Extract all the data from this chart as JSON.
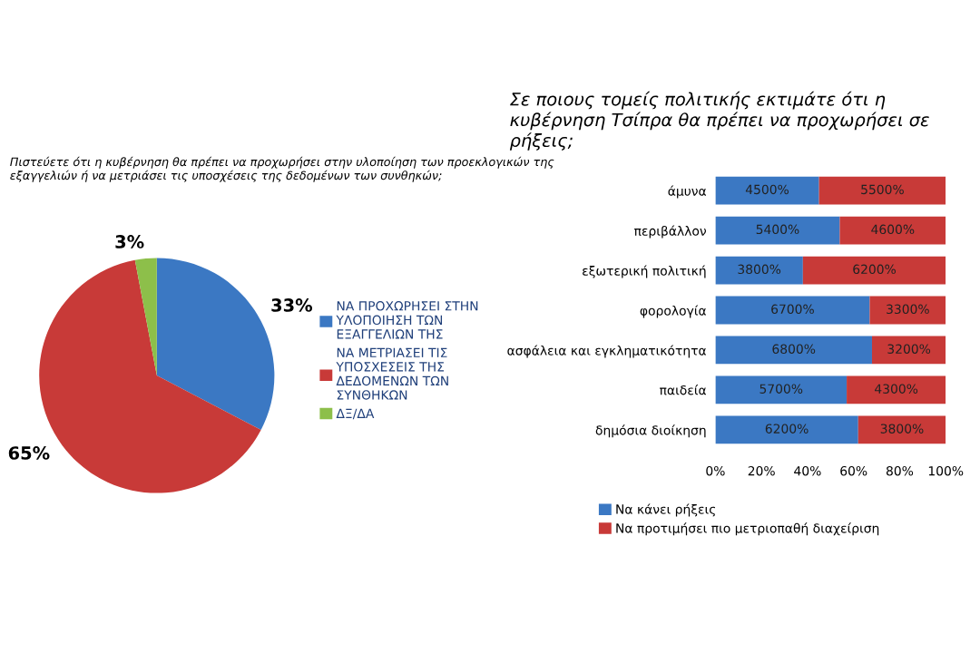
{
  "chart_data": [
    {
      "type": "pie",
      "title": "Πιστεύετε ότι η κυβέρνηση θα πρέπει να προχωρήσει στην υλοποίηση των προεκλογικών της εξαγγελιών ή να μετριάσει τις υποσχέσεις της δεδομένων των συνθηκών;",
      "categories": [
        "ΝΑ ΠΡΟΧΩΡΗΣΕΙ ΣΤΗΝ ΥΛΟΠΟΙΗΣΗ ΤΩΝ ΕΞΑΓΓΕΛΙΩΝ ΤΗΣ",
        "ΝΑ ΜΕΤΡΙΑΣΕΙ ΤΙΣ ΥΠΟΣΧΕΣΕΙΣ ΤΗΣ ΔΕΔΟΜΕΝΩΝ ΤΩΝ ΣΥΝΘΗΚΩΝ",
        "ΔΞ/ΔΑ"
      ],
      "values": [
        33,
        65,
        3
      ],
      "colors": [
        "#3b78c3",
        "#c83a38",
        "#8dbf4a"
      ],
      "value_labels": [
        "33%",
        "65%",
        "3%"
      ],
      "legend": "right"
    },
    {
      "type": "bar",
      "orientation": "horizontal",
      "stacked": true,
      "title": "Σε ποιους τομείς πολιτικής εκτιμάτε ότι η κυβέρνηση Τσίπρα θα πρέπει να προχωρήσει σε ρήξεις;",
      "categories": [
        "άμυνα",
        "περιβάλλον",
        "εξωτερική πολιτική",
        "φορολογία",
        "ασφάλεια και εγκληματικότητα",
        "παιδεία",
        "δημόσια διοίκηση"
      ],
      "series": [
        {
          "name": "Να κάνει ρήξεις",
          "color": "#3b78c3",
          "values": [
            45,
            54,
            38,
            67,
            68,
            57,
            62
          ],
          "value_labels": [
            "4500%",
            "5400%",
            "3800%",
            "6700%",
            "6800%",
            "5700%",
            "6200%"
          ]
        },
        {
          "name": "Να προτιμήσει πιο μετριοπαθή διαχείριση",
          "color": "#c83a38",
          "values": [
            55,
            46,
            62,
            33,
            32,
            43,
            38
          ],
          "value_labels": [
            "5500%",
            "4600%",
            "6200%",
            "3300%",
            "3200%",
            "4300%",
            "3800%"
          ]
        }
      ],
      "xlim": [
        0,
        100
      ],
      "xticks": [
        {
          "value": 0,
          "label": "0%"
        },
        {
          "value": 20,
          "label": "20%"
        },
        {
          "value": 40,
          "label": "40%"
        },
        {
          "value": 60,
          "label": "60%"
        },
        {
          "value": 80,
          "label": "80%"
        },
        {
          "value": 100,
          "label": "100%"
        }
      ],
      "grid": false,
      "legend": "bottom"
    }
  ]
}
